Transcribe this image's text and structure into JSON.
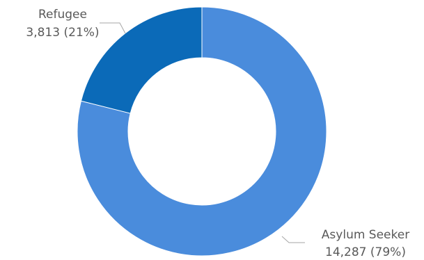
{
  "chart_data": {
    "type": "pie",
    "donut": true,
    "title": "",
    "legend": "none",
    "slices": [
      {
        "label": "Asylum Seeker",
        "value": 14287,
        "value_text": "14,287",
        "percent_text": "(79%)",
        "color": "#4a8cdc"
      },
      {
        "label": "Refugee",
        "value": 3813,
        "value_text": "3,813",
        "percent_text": "(21%)",
        "color": "#0b6ab8"
      }
    ]
  }
}
